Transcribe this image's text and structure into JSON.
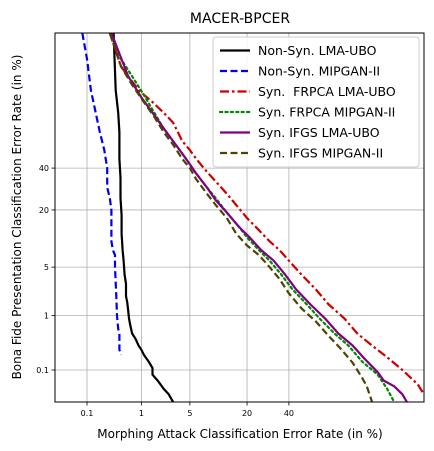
{
  "chart_data": {
    "type": "line",
    "title": "MACER-BPCER",
    "xlabel": "Morphing Attack Classification Error Rate (in %)",
    "ylabel": "Bona Fide Presentation Classification Error Rate (in %)",
    "x_scale": "normal-deviate",
    "y_scale": "normal-deviate",
    "xlim": [
      0.02,
      95
    ],
    "ylim": [
      0.02,
      95
    ],
    "x_ticks": [
      {
        "value": 0.1,
        "label": "0.1"
      },
      {
        "value": 1,
        "label": "1"
      },
      {
        "value": 5,
        "label": "5"
      },
      {
        "value": 20,
        "label": "20"
      },
      {
        "value": 40,
        "label": "40"
      }
    ],
    "y_ticks": [
      {
        "value": 0.1,
        "label": "0.1"
      },
      {
        "value": 1,
        "label": "1"
      },
      {
        "value": 5,
        "label": "5"
      },
      {
        "value": 20,
        "label": "20"
      },
      {
        "value": 40,
        "label": "40"
      }
    ],
    "grid": true,
    "legend_position": "top-right",
    "series": [
      {
        "name": "Non-Syn. LMA-UBO",
        "color": "#000000",
        "style": "solid",
        "points": [
          [
            0.33,
            95
          ],
          [
            0.36,
            80
          ],
          [
            0.4,
            70
          ],
          [
            0.42,
            60
          ],
          [
            0.42,
            45
          ],
          [
            0.44,
            35
          ],
          [
            0.44,
            25
          ],
          [
            0.46,
            18
          ],
          [
            0.46,
            12
          ],
          [
            0.48,
            8
          ],
          [
            0.5,
            6
          ],
          [
            0.52,
            4
          ],
          [
            0.55,
            3
          ],
          [
            0.55,
            2
          ],
          [
            0.58,
            1.6
          ],
          [
            0.6,
            1.2
          ],
          [
            0.62,
            0.9
          ],
          [
            0.65,
            0.7
          ],
          [
            0.7,
            0.5
          ],
          [
            0.8,
            0.4
          ],
          [
            0.9,
            0.3
          ],
          [
            1.0,
            0.25
          ],
          [
            1.1,
            0.2
          ],
          [
            1.3,
            0.15
          ],
          [
            1.5,
            0.11
          ],
          [
            1.5,
            0.08
          ],
          [
            1.8,
            0.06
          ],
          [
            2.2,
            0.04
          ],
          [
            2.6,
            0.03
          ],
          [
            3.0,
            0.02
          ]
        ]
      },
      {
        "name": "Non-Syn. MIPGAN-II",
        "color": "#0000ee",
        "style": "dashed",
        "points": [
          [
            0.08,
            95
          ],
          [
            0.1,
            90
          ],
          [
            0.12,
            80
          ],
          [
            0.15,
            70
          ],
          [
            0.18,
            60
          ],
          [
            0.22,
            50
          ],
          [
            0.25,
            40
          ],
          [
            0.25,
            30
          ],
          [
            0.28,
            25
          ],
          [
            0.3,
            20
          ],
          [
            0.3,
            10
          ],
          [
            0.32,
            8
          ],
          [
            0.35,
            7
          ],
          [
            0.35,
            5
          ],
          [
            0.37,
            2
          ],
          [
            0.38,
            1
          ],
          [
            0.4,
            0.6
          ],
          [
            0.42,
            0.5
          ],
          [
            0.42,
            0.25
          ],
          [
            0.45,
            0.2
          ]
        ]
      },
      {
        "name": "Syn.  FRPCA LMA-UBO",
        "color": "#cc0000",
        "style": "dashdot",
        "points": [
          [
            0.28,
            95
          ],
          [
            0.45,
            88
          ],
          [
            0.6,
            85
          ],
          [
            0.9,
            80
          ],
          [
            1.5,
            75
          ],
          [
            2.2,
            70
          ],
          [
            3.0,
            65
          ],
          [
            4.0,
            55
          ],
          [
            5.0,
            50
          ],
          [
            6.0,
            45
          ],
          [
            8.0,
            38
          ],
          [
            10,
            33
          ],
          [
            13,
            27
          ],
          [
            16,
            22
          ],
          [
            20,
            17
          ],
          [
            25,
            13
          ],
          [
            30,
            10
          ],
          [
            35,
            8
          ],
          [
            40,
            6
          ],
          [
            47,
            4
          ],
          [
            55,
            2.5
          ],
          [
            62,
            1.5
          ],
          [
            70,
            0.9
          ],
          [
            76,
            0.5
          ],
          [
            82,
            0.3
          ],
          [
            87,
            0.18
          ],
          [
            91,
            0.1
          ],
          [
            94,
            0.05
          ],
          [
            95,
            0.03
          ]
        ]
      },
      {
        "name": "Syn. FRPCA MIPGAN-II",
        "color": "#008800",
        "style": "dotted",
        "points": [
          [
            0.28,
            95
          ],
          [
            0.45,
            90
          ],
          [
            0.7,
            85
          ],
          [
            1.1,
            78
          ],
          [
            1.6,
            70
          ],
          [
            2.2,
            62
          ],
          [
            3.0,
            55
          ],
          [
            4.0,
            48
          ],
          [
            5.0,
            42
          ],
          [
            6.0,
            37
          ],
          [
            8.0,
            30
          ],
          [
            10,
            25
          ],
          [
            13,
            19
          ],
          [
            17,
            14
          ],
          [
            20,
            11
          ],
          [
            25,
            8
          ],
          [
            30,
            6
          ],
          [
            36,
            4
          ],
          [
            42,
            2.5
          ],
          [
            50,
            1.5
          ],
          [
            57,
            0.9
          ],
          [
            65,
            0.5
          ],
          [
            72,
            0.3
          ],
          [
            78,
            0.15
          ],
          [
            84,
            0.08
          ],
          [
            87,
            0.04
          ],
          [
            89,
            0.02
          ]
        ]
      },
      {
        "name": "Syn. IFGS LMA-UBO",
        "color": "#800080",
        "style": "solid",
        "points": [
          [
            0.3,
            95
          ],
          [
            0.6,
            85
          ],
          [
            1.0,
            77
          ],
          [
            1.5,
            70
          ],
          [
            2.2,
            62
          ],
          [
            3.0,
            55
          ],
          [
            4.0,
            48
          ],
          [
            5.0,
            42
          ],
          [
            6.0,
            37
          ],
          [
            8.0,
            30
          ],
          [
            10,
            24
          ],
          [
            13,
            19
          ],
          [
            17,
            14
          ],
          [
            21,
            11
          ],
          [
            26,
            8
          ],
          [
            32,
            6
          ],
          [
            38,
            4
          ],
          [
            44,
            2.5
          ],
          [
            52,
            1.5
          ],
          [
            60,
            0.9
          ],
          [
            67,
            0.5
          ],
          [
            74,
            0.3
          ],
          [
            79,
            0.17
          ],
          [
            84,
            0.09
          ],
          [
            86,
            0.06
          ],
          [
            89,
            0.045
          ],
          [
            91,
            0.03
          ],
          [
            92,
            0.02
          ]
        ]
      },
      {
        "name": "Syn. IFGS MIPGAN-II",
        "color": "#4d4400",
        "style": "dashed",
        "points": [
          [
            0.28,
            95
          ],
          [
            0.45,
            88
          ],
          [
            0.7,
            82
          ],
          [
            1.1,
            75
          ],
          [
            1.6,
            68
          ],
          [
            2.2,
            60
          ],
          [
            3.0,
            53
          ],
          [
            4.0,
            45
          ],
          [
            5.0,
            40
          ],
          [
            6.0,
            34
          ],
          [
            8.0,
            27
          ],
          [
            10,
            22
          ],
          [
            13,
            17
          ],
          [
            16,
            12
          ],
          [
            20,
            9
          ],
          [
            25,
            7
          ],
          [
            30,
            5
          ],
          [
            35,
            3.5
          ],
          [
            40,
            2.2
          ],
          [
            47,
            1.3
          ],
          [
            55,
            0.8
          ],
          [
            62,
            0.45
          ],
          [
            68,
            0.27
          ],
          [
            74,
            0.14
          ],
          [
            78,
            0.07
          ],
          [
            80,
            0.045
          ],
          [
            82,
            0.02
          ]
        ]
      }
    ]
  }
}
